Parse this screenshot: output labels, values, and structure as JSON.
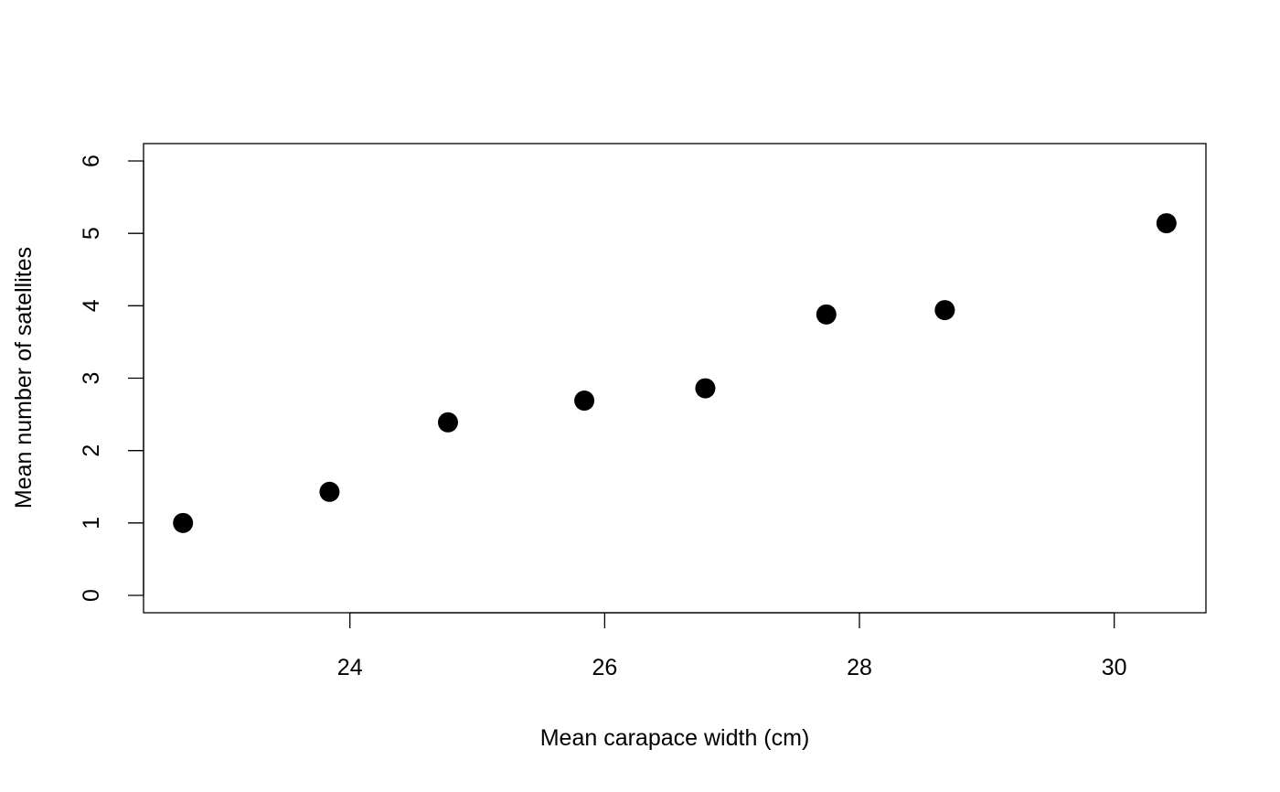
{
  "chart_data": {
    "type": "scatter",
    "title": "",
    "xlabel": "Mean carapace width (cm)",
    "ylabel": "Mean number of satellites",
    "x": [
      22.69,
      23.84,
      24.77,
      25.84,
      26.79,
      27.74,
      28.67,
      30.41
    ],
    "y": [
      1.0,
      1.43,
      2.39,
      2.69,
      2.86,
      3.88,
      3.94,
      5.14
    ],
    "xlim": [
      22.38,
      30.72
    ],
    "ylim": [
      -0.24,
      6.24
    ],
    "xticks": [
      24,
      26,
      28,
      30
    ],
    "yticks": [
      0,
      1,
      2,
      3,
      4,
      5,
      6
    ],
    "grid": false,
    "point_color": "#000000",
    "marker": "filled-circle"
  }
}
